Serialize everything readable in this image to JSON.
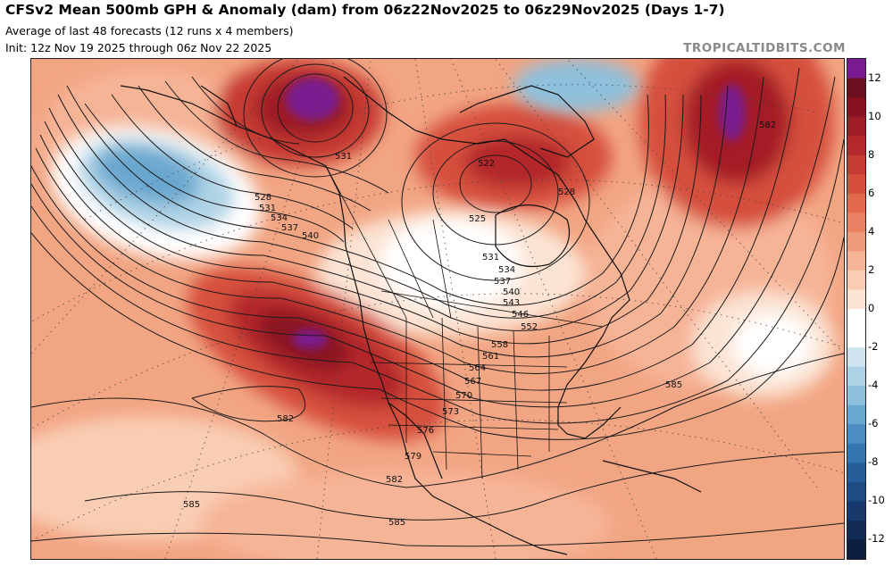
{
  "header": {
    "title": "CFSv2 Mean 500mb GPH & Anomaly (dam) from 06z22Nov2025 to 06z29Nov2025 (Days 1-7)",
    "subtitle": "Average of last 48 forecasts (12 runs x 4 members)",
    "init": "Init: 12z Nov 19 2025 through 06z Nov 22 2025",
    "brand": "TROPICALTIDBITS.COM"
  },
  "contour_labels": [
    {
      "id": "531-gulf-alaska",
      "text": "531"
    },
    {
      "id": "528-w",
      "text": "528"
    },
    {
      "id": "531-w",
      "text": "531"
    },
    {
      "id": "534-w",
      "text": "534"
    },
    {
      "id": "537-w",
      "text": "537"
    },
    {
      "id": "540-w",
      "text": "540"
    },
    {
      "id": "522-hudson",
      "text": "522"
    },
    {
      "id": "525-hudson",
      "text": "525"
    },
    {
      "id": "528-e",
      "text": "528"
    },
    {
      "id": "531-e",
      "text": "531"
    },
    {
      "id": "534-e",
      "text": "534"
    },
    {
      "id": "537-e",
      "text": "537"
    },
    {
      "id": "540-e",
      "text": "540"
    },
    {
      "id": "543-e",
      "text": "543"
    },
    {
      "id": "546-e",
      "text": "546"
    },
    {
      "id": "552-e",
      "text": "552"
    },
    {
      "id": "558",
      "text": "558"
    },
    {
      "id": "561",
      "text": "561"
    },
    {
      "id": "564",
      "text": "564"
    },
    {
      "id": "567",
      "text": "567"
    },
    {
      "id": "570",
      "text": "570"
    },
    {
      "id": "573",
      "text": "573"
    },
    {
      "id": "576",
      "text": "576"
    },
    {
      "id": "579",
      "text": "579"
    },
    {
      "id": "582-pac",
      "text": "582"
    },
    {
      "id": "582-baja",
      "text": "582"
    },
    {
      "id": "582-atl",
      "text": "582"
    },
    {
      "id": "585-atl",
      "text": "585"
    },
    {
      "id": "585-sw",
      "text": "585"
    },
    {
      "id": "585-s",
      "text": "585"
    }
  ],
  "colorbar": {
    "ticks": [
      "12",
      "10",
      "8",
      "6",
      "4",
      "2",
      "0",
      "-2",
      "-4",
      "-6",
      "-8",
      "-10",
      "-12"
    ],
    "levels": [
      {
        "v": 13,
        "color": "#7a1a8f"
      },
      {
        "v": 12,
        "color": "#6b0f1f"
      },
      {
        "v": 11,
        "color": "#86121f"
      },
      {
        "v": 10,
        "color": "#9d1c25"
      },
      {
        "v": 9,
        "color": "#b3282b"
      },
      {
        "v": 8,
        "color": "#c63a33"
      },
      {
        "v": 7,
        "color": "#d64f3d"
      },
      {
        "v": 6,
        "color": "#e2684e"
      },
      {
        "v": 5,
        "color": "#eb8162"
      },
      {
        "v": 4,
        "color": "#f19a7b"
      },
      {
        "v": 3,
        "color": "#f6b496"
      },
      {
        "v": 2,
        "color": "#f9cdb4"
      },
      {
        "v": 1,
        "color": "#fce4d4"
      },
      {
        "v": 0,
        "color": "#ffffff"
      },
      {
        "v": -1,
        "color": "#ffffff"
      },
      {
        "v": -2,
        "color": "#cfe4ef"
      },
      {
        "v": -3,
        "color": "#afd3e6"
      },
      {
        "v": -4,
        "color": "#8ec0dc"
      },
      {
        "v": -5,
        "color": "#6aa7cf"
      },
      {
        "v": -6,
        "color": "#4c8ec1"
      },
      {
        "v": -7,
        "color": "#3676ae"
      },
      {
        "v": -8,
        "color": "#265f98"
      },
      {
        "v": -9,
        "color": "#1d4b82"
      },
      {
        "v": -10,
        "color": "#17396b"
      },
      {
        "v": -11,
        "color": "#112b55"
      },
      {
        "v": -12,
        "color": "#0c1f42"
      }
    ]
  },
  "colors": {
    "background_anomaly": "#f0a080",
    "strong_positive": "#a41e26",
    "extreme_positive": "#7a1a8f",
    "negative": "#6aa7cf",
    "contour": "#1a1a1a"
  }
}
